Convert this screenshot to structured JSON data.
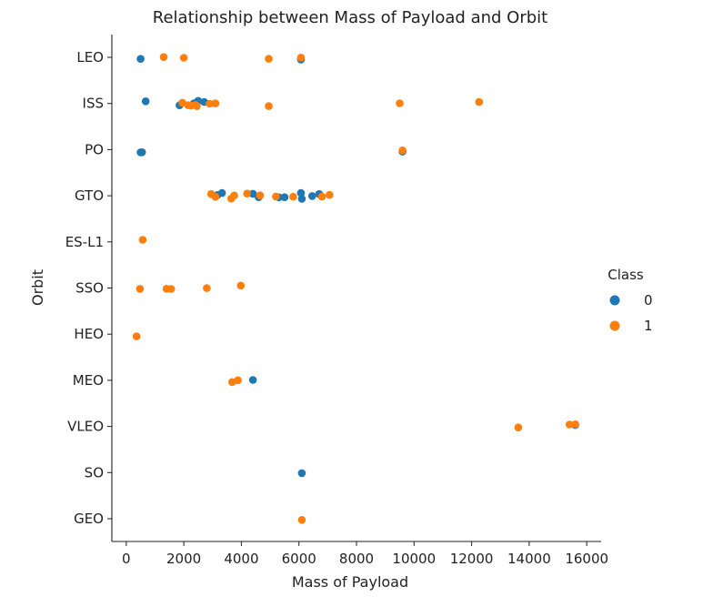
{
  "chart_data": {
    "type": "scatter",
    "title": "Relationship between Mass of Payload and Orbit",
    "xlabel": "Mass of Payload",
    "ylabel": "Orbit",
    "xlim": [
      -500,
      16500
    ],
    "x_ticks": [
      0,
      2000,
      4000,
      6000,
      8000,
      10000,
      12000,
      14000,
      16000
    ],
    "categories": [
      "LEO",
      "ISS",
      "PO",
      "GTO",
      "ES-L1",
      "SSO",
      "HEO",
      "MEO",
      "VLEO",
      "SO",
      "GEO"
    ],
    "legend_title": "Class",
    "legend_position": "right",
    "grid": false,
    "series": [
      {
        "name": "0",
        "color": "#1f77b4",
        "points": [
          {
            "x": 500,
            "y": "LEO"
          },
          {
            "x": 6070,
            "y": "LEO"
          },
          {
            "x": 677,
            "y": "ISS"
          },
          {
            "x": 1850,
            "y": "ISS"
          },
          {
            "x": 2350,
            "y": "ISS"
          },
          {
            "x": 2500,
            "y": "ISS"
          },
          {
            "x": 2710,
            "y": "ISS"
          },
          {
            "x": 500,
            "y": "PO"
          },
          {
            "x": 550,
            "y": "PO"
          },
          {
            "x": 9600,
            "y": "PO"
          },
          {
            "x": 3170,
            "y": "GTO"
          },
          {
            "x": 3325,
            "y": "GTO"
          },
          {
            "x": 4400,
            "y": "GTO"
          },
          {
            "x": 4600,
            "y": "GTO"
          },
          {
            "x": 5300,
            "y": "GTO"
          },
          {
            "x": 5500,
            "y": "GTO"
          },
          {
            "x": 6070,
            "y": "GTO"
          },
          {
            "x": 6100,
            "y": "GTO"
          },
          {
            "x": 6460,
            "y": "GTO"
          },
          {
            "x": 6700,
            "y": "GTO"
          },
          {
            "x": 4400,
            "y": "MEO"
          },
          {
            "x": 15600,
            "y": "VLEO"
          },
          {
            "x": 6100,
            "y": "SO"
          }
        ]
      },
      {
        "name": "1",
        "color": "#ff7f0e",
        "points": [
          {
            "x": 1300,
            "y": "LEO"
          },
          {
            "x": 2000,
            "y": "LEO"
          },
          {
            "x": 4950,
            "y": "LEO"
          },
          {
            "x": 6070,
            "y": "LEO"
          },
          {
            "x": 1950,
            "y": "ISS"
          },
          {
            "x": 2150,
            "y": "ISS"
          },
          {
            "x": 2250,
            "y": "ISS"
          },
          {
            "x": 2400,
            "y": "ISS"
          },
          {
            "x": 2450,
            "y": "ISS"
          },
          {
            "x": 2900,
            "y": "ISS"
          },
          {
            "x": 3100,
            "y": "ISS"
          },
          {
            "x": 4950,
            "y": "ISS"
          },
          {
            "x": 9500,
            "y": "ISS"
          },
          {
            "x": 12260,
            "y": "ISS"
          },
          {
            "x": 9600,
            "y": "PO"
          },
          {
            "x": 2950,
            "y": "GTO"
          },
          {
            "x": 3100,
            "y": "GTO"
          },
          {
            "x": 3650,
            "y": "GTO"
          },
          {
            "x": 3750,
            "y": "GTO"
          },
          {
            "x": 4200,
            "y": "GTO"
          },
          {
            "x": 4650,
            "y": "GTO"
          },
          {
            "x": 5200,
            "y": "GTO"
          },
          {
            "x": 5800,
            "y": "GTO"
          },
          {
            "x": 6800,
            "y": "GTO"
          },
          {
            "x": 7060,
            "y": "GTO"
          },
          {
            "x": 570,
            "y": "ES-L1"
          },
          {
            "x": 475,
            "y": "SSO"
          },
          {
            "x": 1400,
            "y": "SSO"
          },
          {
            "x": 1560,
            "y": "SSO"
          },
          {
            "x": 2800,
            "y": "SSO"
          },
          {
            "x": 3980,
            "y": "SSO"
          },
          {
            "x": 360,
            "y": "HEO"
          },
          {
            "x": 3680,
            "y": "MEO"
          },
          {
            "x": 3880,
            "y": "MEO"
          },
          {
            "x": 13620,
            "y": "VLEO"
          },
          {
            "x": 15400,
            "y": "VLEO"
          },
          {
            "x": 15600,
            "y": "VLEO"
          },
          {
            "x": 6100,
            "y": "GEO"
          }
        ]
      }
    ]
  }
}
